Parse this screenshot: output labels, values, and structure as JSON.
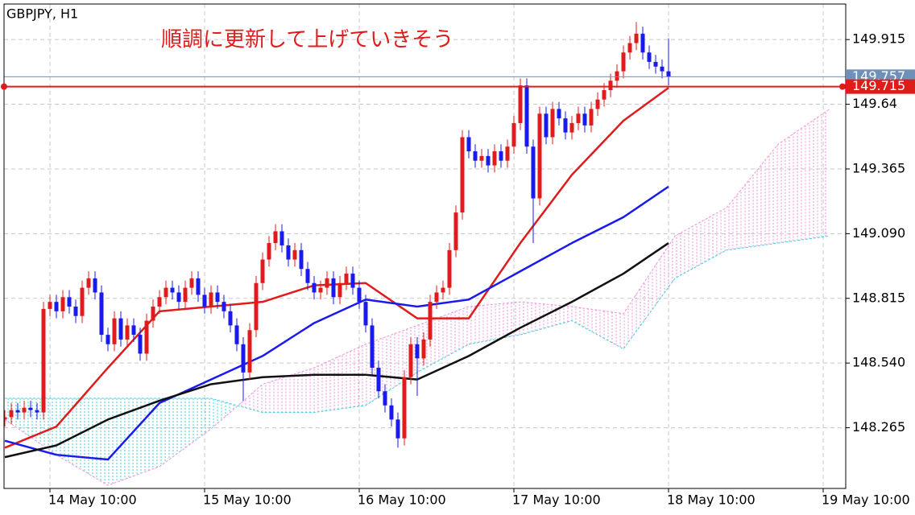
{
  "chart_data": {
    "type": "candlestick",
    "title": "GBPJPY, H1",
    "annotation": "順調に更新して上げていきそう",
    "up_color": "#e01b1b",
    "down_color": "#1a1aee",
    "open": [
      148.3,
      148.31,
      148.34,
      148.33,
      148.35,
      148.34,
      148.33,
      148.77,
      148.8,
      148.76,
      148.82,
      148.78,
      148.74,
      148.86,
      148.9,
      148.84,
      148.66,
      148.62,
      148.73,
      148.64,
      148.7,
      148.66,
      148.58,
      148.72,
      148.78,
      148.82,
      148.86,
      148.84,
      148.8,
      148.86,
      148.9,
      148.83,
      148.78,
      148.84,
      148.8,
      148.76,
      148.7,
      148.62,
      148.5,
      148.68,
      148.88,
      148.98,
      149.05,
      149.1,
      149.04,
      148.98,
      149.02,
      148.94,
      148.88,
      148.84,
      148.86,
      148.9,
      148.82,
      148.88,
      148.92,
      148.86,
      148.8,
      148.7,
      148.52,
      148.42,
      148.36,
      148.3,
      148.22,
      148.48,
      148.62,
      148.56,
      148.64,
      148.8,
      148.84,
      148.86,
      149.02,
      149.18,
      149.5,
      149.44,
      149.4,
      149.42,
      149.38,
      149.44,
      149.4,
      149.46,
      149.56,
      149.72,
      149.46,
      149.24,
      149.6,
      149.5,
      149.62,
      149.58,
      149.52,
      149.56,
      149.6,
      149.55,
      149.62,
      149.66,
      149.7,
      149.74,
      149.78,
      149.86,
      149.9,
      149.94,
      149.86,
      149.82,
      149.8,
      149.78
    ],
    "high": [
      148.34,
      148.37,
      148.37,
      148.38,
      148.38,
      148.37,
      148.8,
      148.83,
      148.83,
      148.85,
      148.85,
      148.81,
      148.89,
      148.93,
      148.93,
      148.87,
      148.69,
      148.76,
      148.76,
      148.73,
      148.73,
      148.69,
      148.75,
      148.81,
      148.85,
      148.89,
      148.89,
      148.87,
      148.89,
      148.93,
      148.93,
      148.86,
      148.87,
      148.87,
      148.83,
      148.79,
      148.73,
      148.65,
      148.71,
      148.91,
      149.01,
      149.08,
      149.13,
      149.13,
      149.07,
      149.05,
      149.05,
      148.97,
      148.91,
      148.89,
      148.93,
      148.93,
      148.91,
      148.95,
      148.95,
      148.89,
      148.83,
      148.73,
      148.55,
      148.45,
      148.39,
      148.33,
      148.51,
      148.65,
      148.65,
      148.67,
      148.83,
      148.87,
      148.89,
      149.05,
      149.21,
      149.53,
      149.53,
      149.47,
      149.45,
      149.45,
      149.47,
      149.47,
      149.49,
      149.59,
      149.75,
      149.75,
      149.49,
      149.63,
      149.63,
      149.65,
      149.65,
      149.61,
      149.59,
      149.63,
      149.63,
      149.65,
      149.69,
      149.73,
      149.77,
      149.81,
      149.89,
      149.93,
      149.99,
      149.97,
      149.89,
      149.85,
      149.83,
      149.92
    ],
    "low": [
      148.27,
      148.28,
      148.3,
      148.3,
      148.31,
      148.3,
      148.3,
      148.74,
      148.73,
      148.73,
      148.75,
      148.71,
      148.71,
      148.83,
      148.81,
      148.63,
      148.59,
      148.59,
      148.61,
      148.61,
      148.63,
      148.55,
      148.55,
      148.69,
      148.75,
      148.79,
      148.81,
      148.77,
      148.77,
      148.83,
      148.8,
      148.75,
      148.75,
      148.77,
      148.73,
      148.67,
      148.59,
      148.38,
      148.47,
      148.65,
      148.85,
      148.95,
      149.02,
      149.01,
      148.95,
      148.95,
      148.91,
      148.85,
      148.81,
      148.81,
      148.83,
      148.79,
      148.79,
      148.85,
      148.83,
      148.77,
      148.67,
      148.49,
      148.39,
      148.33,
      148.27,
      148.18,
      148.19,
      148.45,
      148.4,
      148.53,
      148.61,
      148.77,
      148.81,
      148.83,
      148.99,
      149.15,
      149.41,
      149.37,
      149.37,
      149.35,
      149.35,
      149.37,
      149.37,
      149.43,
      149.53,
      149.43,
      149.05,
      149.21,
      149.47,
      149.47,
      149.55,
      149.49,
      149.49,
      149.53,
      149.52,
      149.52,
      149.59,
      149.63,
      149.67,
      149.71,
      149.75,
      149.83,
      149.87,
      149.83,
      149.79,
      149.77,
      149.75,
      149.72
    ],
    "close": [
      148.31,
      148.34,
      148.33,
      148.35,
      148.34,
      148.33,
      148.77,
      148.8,
      148.76,
      148.82,
      148.78,
      148.74,
      148.86,
      148.9,
      148.84,
      148.66,
      148.62,
      148.73,
      148.64,
      148.7,
      148.66,
      148.58,
      148.72,
      148.78,
      148.82,
      148.86,
      148.84,
      148.8,
      148.86,
      148.9,
      148.83,
      148.78,
      148.84,
      148.8,
      148.76,
      148.7,
      148.62,
      148.5,
      148.68,
      148.88,
      148.98,
      149.05,
      149.1,
      149.04,
      148.98,
      149.02,
      148.94,
      148.88,
      148.84,
      148.86,
      148.9,
      148.82,
      148.88,
      148.92,
      148.86,
      148.8,
      148.7,
      148.52,
      148.42,
      148.36,
      148.3,
      148.22,
      148.48,
      148.62,
      148.56,
      148.64,
      148.8,
      148.84,
      148.86,
      149.02,
      149.18,
      149.5,
      149.44,
      149.4,
      149.42,
      149.38,
      149.44,
      149.4,
      149.46,
      149.56,
      149.72,
      149.46,
      149.24,
      149.6,
      149.5,
      149.62,
      149.58,
      149.52,
      149.56,
      149.6,
      149.55,
      149.62,
      149.66,
      149.7,
      149.74,
      149.78,
      149.86,
      149.9,
      149.94,
      149.86,
      149.82,
      149.8,
      149.78,
      149.757
    ],
    "series": [
      {
        "color": "#e01b1b",
        "x": [
          0,
          8,
          16,
          24,
          32,
          40,
          48,
          56,
          64,
          72,
          80,
          88,
          96,
          103
        ],
        "values": [
          148.18,
          148.27,
          148.52,
          148.76,
          148.78,
          148.8,
          148.87,
          148.88,
          148.73,
          148.73,
          149.05,
          149.34,
          149.57,
          149.71
        ]
      },
      {
        "color": "#1a1aee",
        "x": [
          0,
          8,
          16,
          24,
          32,
          40,
          48,
          56,
          64,
          72,
          80,
          88,
          96,
          103
        ],
        "values": [
          148.21,
          148.15,
          148.13,
          148.37,
          148.47,
          148.57,
          148.71,
          148.81,
          148.78,
          148.81,
          148.93,
          149.05,
          149.16,
          149.29
        ]
      },
      {
        "color": "#111111",
        "x": [
          0,
          8,
          16,
          24,
          32,
          40,
          48,
          56,
          64,
          72,
          80,
          88,
          96,
          103
        ],
        "values": [
          148.14,
          148.19,
          148.3,
          148.38,
          148.45,
          148.48,
          148.49,
          148.49,
          148.47,
          148.57,
          148.69,
          148.8,
          148.92,
          149.05
        ]
      }
    ],
    "cloud": {
      "x": [
        0,
        8,
        16,
        24,
        32,
        40,
        48,
        56,
        64,
        72,
        80,
        88,
        96,
        104,
        112,
        120,
        128
      ],
      "span_a": {
        "color": "#40d0e0",
        "values": [
          148.39,
          148.39,
          148.39,
          148.39,
          148.39,
          148.33,
          148.33,
          148.36,
          148.5,
          148.62,
          148.66,
          148.72,
          148.6,
          148.9,
          149.02,
          149.05,
          149.08
        ]
      },
      "span_b": {
        "color": "#ee90dd",
        "values": [
          148.3,
          148.15,
          148.02,
          148.1,
          148.26,
          148.45,
          148.52,
          148.62,
          148.7,
          148.78,
          148.8,
          148.78,
          148.75,
          149.08,
          149.2,
          149.47,
          149.62
        ]
      }
    },
    "hlines": [
      {
        "value": 149.757,
        "color": "#6f90b8"
      },
      {
        "value": 149.715,
        "color": "#e01b1b"
      }
    ],
    "xlim": [
      -0.125,
      130.5
    ],
    "ylim": [
      148.007,
      150.066
    ],
    "yticks": [
      149.915,
      149.64,
      149.365,
      {
        "value": 149.09,
        "label": "149.090"
      },
      148.815,
      {
        "value": 148.54,
        "label": "148.540"
      },
      148.265
    ],
    "xticks": [
      {
        "value": 7,
        "label": "14 May 10:00"
      },
      {
        "value": 31,
        "label": "15 May 10:00"
      },
      {
        "value": 55,
        "label": "16 May 10:00"
      },
      {
        "value": 79,
        "label": "17 May 10:00"
      },
      {
        "value": 103,
        "label": "18 May 10:00"
      },
      {
        "value": 127,
        "label": "19 May 10:00"
      }
    ],
    "grid": true
  }
}
